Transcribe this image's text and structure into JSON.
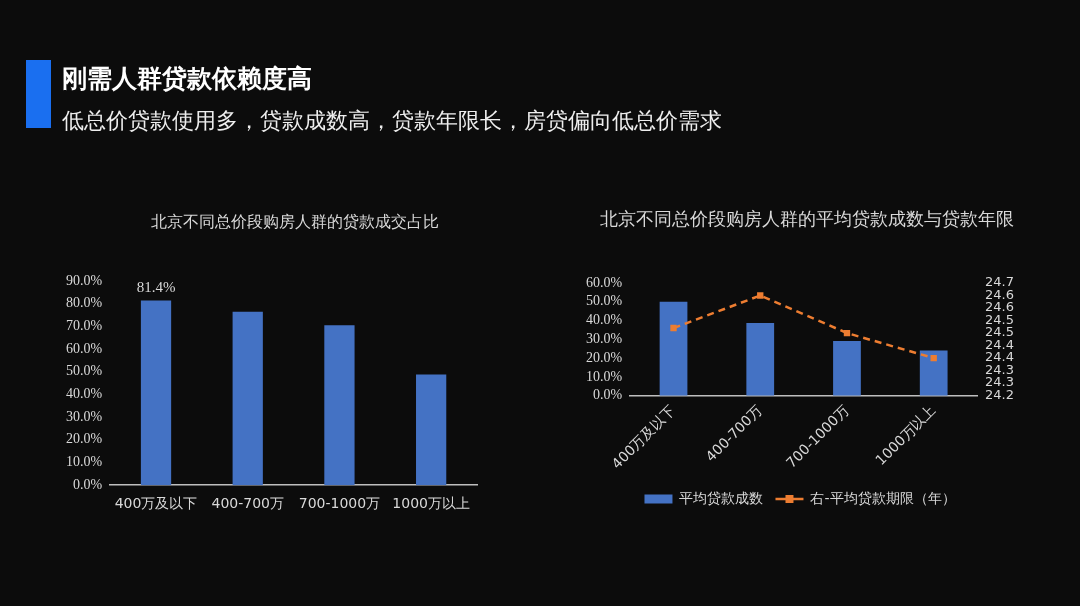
{
  "chart_data": [
    {
      "type": "other",
      "title": "刚需人群贷款依赖度高",
      "subtitle": "低总价贷款使用多，贷款成数高，贷款年限长，房贷偏向低总价需求"
    },
    {
      "type": "bar",
      "title": "北京不同总价段购房人群的贷款成交占比",
      "categories": [
        "400万及以下",
        "400-700万",
        "700-1000万",
        "1000万以上"
      ],
      "values": [
        81.4,
        76.5,
        70.5,
        48.8
      ],
      "value_labels": [
        "81.4%",
        null,
        null,
        null
      ],
      "color": "#4472c4",
      "ylim": [
        0,
        90
      ],
      "yticks": [
        {
          "value": 0,
          "label": "0.0%"
        },
        {
          "value": 10,
          "label": "10.0%"
        },
        {
          "value": 20,
          "label": "20.0%"
        },
        {
          "value": 30,
          "label": "30.0%"
        },
        {
          "value": 40,
          "label": "40.0%"
        },
        {
          "value": 50,
          "label": "50.0%"
        },
        {
          "value": 60,
          "label": "60.0%"
        },
        {
          "value": 70,
          "label": "70.0%"
        },
        {
          "value": 80,
          "label": "80.0%"
        },
        {
          "value": 90,
          "label": "90.0%"
        }
      ]
    },
    {
      "type": "bar",
      "title": "北京不同总价段购房人群的平均贷款成数与贷款年限",
      "categories": [
        "400万及以下",
        "400-700万",
        "700-1000万",
        "1000万以上"
      ],
      "series": [
        {
          "name": "平均贷款成数",
          "type": "bar",
          "color": "#4472c4",
          "values": [
            50,
            38.7,
            29.1,
            24
          ]
        },
        {
          "name": "右-平均贷款期限（年）",
          "type": "line",
          "axis": "y2",
          "color": "#ed7d31",
          "line_style": "dashed",
          "marker": "square",
          "values": [
            24.47,
            24.6,
            24.45,
            24.35
          ]
        }
      ],
      "ylim": [
        0,
        60
      ],
      "yticks": [
        {
          "value": 0,
          "label": "0.0%"
        },
        {
          "value": 10,
          "label": "10.0%"
        },
        {
          "value": 20,
          "label": "20.0%"
        },
        {
          "value": 30,
          "label": "30.0%"
        },
        {
          "value": 40,
          "label": "40.0%"
        },
        {
          "value": 50,
          "label": "50.0%"
        },
        {
          "value": 60,
          "label": "60.0%"
        }
      ],
      "y2lim": [
        24.2,
        24.65
      ],
      "y2ticks": [
        24.2,
        {
          "value": 24.25,
          "label": "24.3"
        },
        24.3,
        {
          "value": 24.35,
          "label": "24.4"
        },
        24.4,
        {
          "value": 24.45,
          "label": "24.5"
        },
        24.5,
        {
          "value": 24.55,
          "label": "24.6"
        },
        24.6,
        {
          "value": 24.65,
          "label": "24.7"
        }
      ],
      "legend": "bottom"
    }
  ]
}
